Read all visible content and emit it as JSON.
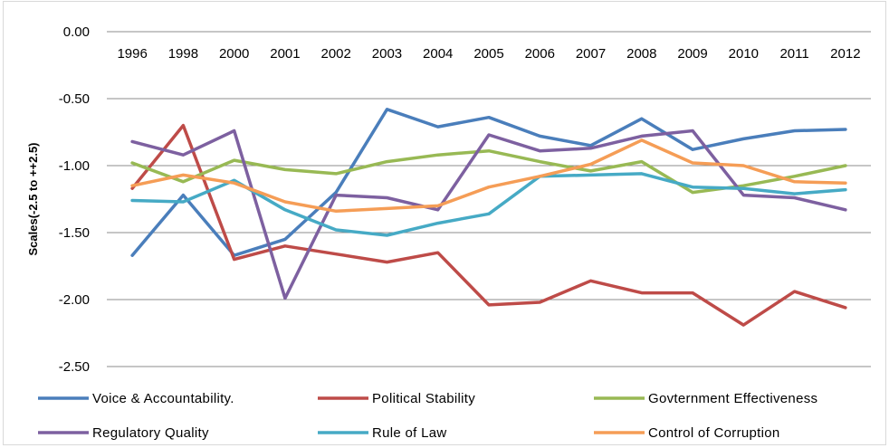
{
  "chart_data": {
    "type": "line",
    "ylabel": "Scales(-2.5 to ++2.5)",
    "ylim": [
      -2.5,
      0
    ],
    "yticks": [
      "0.00",
      "-0.50",
      "-1.00",
      "-1.50",
      "-2.00",
      "-2.50"
    ],
    "ytick_values": [
      0,
      -0.5,
      -1.0,
      -1.5,
      -2.0,
      -2.5
    ],
    "categories": [
      "1996",
      "1998",
      "2000",
      "2001",
      "2002",
      "2003",
      "2004",
      "2005",
      "2006",
      "2007",
      "2008",
      "2009",
      "2010",
      "2011",
      "2012"
    ],
    "grid": true,
    "legend_position": "bottom",
    "series": [
      {
        "name": "Voice & Accountability.",
        "color": "#4a7ebb",
        "values": [
          -1.67,
          -1.22,
          -1.67,
          -1.55,
          -1.2,
          -0.58,
          -0.71,
          -0.64,
          -0.78,
          -0.85,
          -0.65,
          -0.88,
          -0.8,
          -0.74,
          -0.73
        ]
      },
      {
        "name": "Political Stability",
        "color": "#be4b48",
        "values": [
          -1.17,
          -0.7,
          -1.7,
          -1.6,
          -1.66,
          -1.72,
          -1.65,
          -2.04,
          -2.02,
          -1.86,
          -1.95,
          -1.95,
          -2.19,
          -1.94,
          -2.06
        ]
      },
      {
        "name": "Govternment Effectiveness",
        "color": "#98b954",
        "values": [
          -0.98,
          -1.12,
          -0.96,
          -1.03,
          -1.06,
          -0.97,
          -0.92,
          -0.89,
          -0.97,
          -1.04,
          -0.97,
          -1.2,
          -1.15,
          -1.08,
          -1.0
        ]
      },
      {
        "name": "Regulatory Quality",
        "color": "#7d60a0",
        "values": [
          -0.82,
          -0.92,
          -0.74,
          -1.99,
          -1.22,
          -1.24,
          -1.33,
          -0.77,
          -0.89,
          -0.87,
          -0.78,
          -0.74,
          -1.22,
          -1.24,
          -1.33
        ]
      },
      {
        "name": "Rule of Law",
        "color": "#46aac5",
        "values": [
          -1.26,
          -1.27,
          -1.11,
          -1.33,
          -1.48,
          -1.52,
          -1.43,
          -1.36,
          -1.08,
          -1.07,
          -1.06,
          -1.16,
          -1.17,
          -1.21,
          -1.18
        ]
      },
      {
        "name": "Control of Corruption",
        "color": "#f59d56",
        "values": [
          -1.15,
          -1.07,
          -1.13,
          -1.27,
          -1.34,
          -1.32,
          -1.3,
          -1.16,
          -1.08,
          -0.99,
          -0.81,
          -0.98,
          -1.0,
          -1.12,
          -1.13
        ]
      }
    ]
  }
}
